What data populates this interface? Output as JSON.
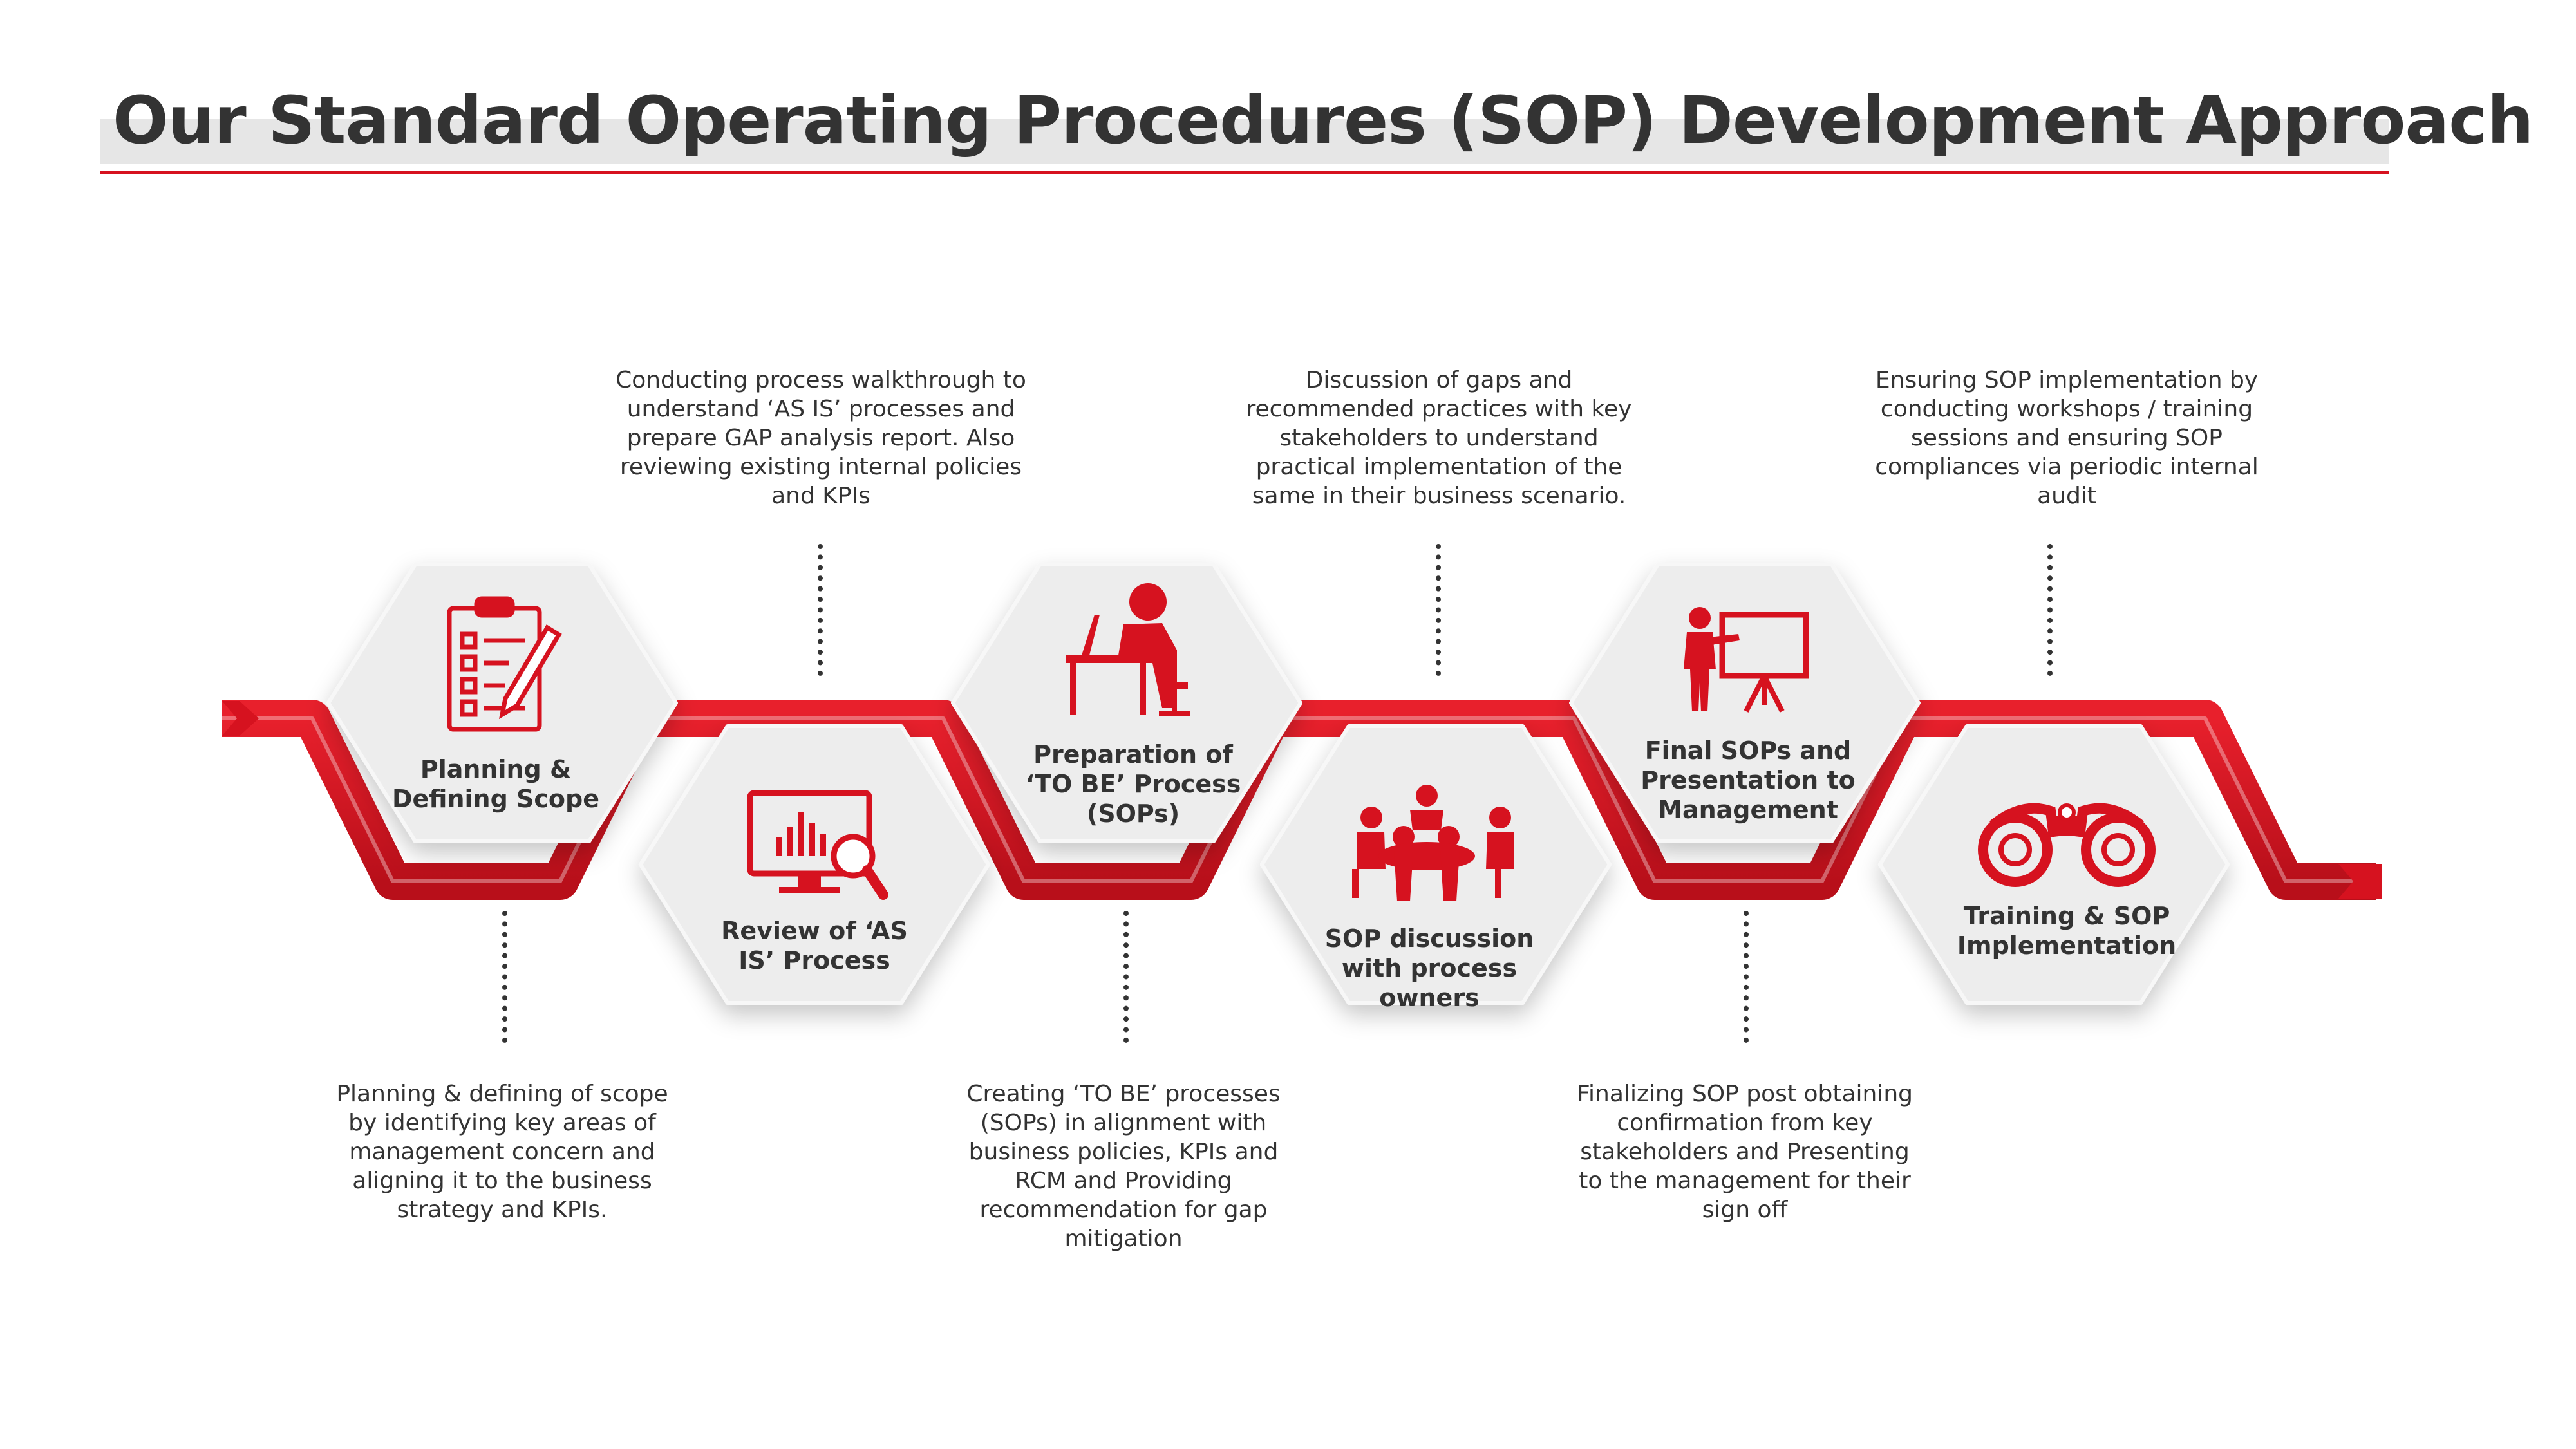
{
  "title": "Our Standard Operating Procedures (SOP) Development Approach",
  "colors": {
    "accent": "#d6121f",
    "accent_dark": "#9e0d17",
    "hexagon": "#ededed",
    "text": "#333333",
    "title_band": "#e6e6e6"
  },
  "steps": [
    {
      "label": "Planning & Defining Scope",
      "icon": "clipboard-checklist-icon",
      "description": "Planning & defining of scope by identifying key areas of management concern and aligning it to the business strategy and KPIs."
    },
    {
      "label": "Review of ‘AS IS’ Process",
      "icon": "monitor-chart-magnifier-icon",
      "description": "Conducting process walkthrough to understand ‘AS IS’ processes and prepare GAP analysis report. Also reviewing existing internal policies and KPIs"
    },
    {
      "label": "Preparation of ‘TO BE’ Process (SOPs)",
      "icon": "person-at-desk-laptop-icon",
      "description": "Creating ‘TO BE’ processes (SOPs) in alignment with business policies, KPIs and RCM and Providing recommendation for gap mitigation"
    },
    {
      "label": "SOP discussion with process owners",
      "icon": "meeting-table-group-icon",
      "description": "Discussion of gaps and recommended practices with key stakeholders to understand practical implementation of the same in their business scenario."
    },
    {
      "label": "Final SOPs and Presentation to Management",
      "icon": "presenter-board-icon",
      "description": "Finalizing SOP post obtaining confirmation from key stakeholders and Presenting to the management for their sign off"
    },
    {
      "label": "Training & SOP Implementation",
      "icon": "binoculars-icon",
      "description": "Ensuring SOP implementation by conducting workshops / training sessions and ensuring SOP compliances via periodic internal audit"
    }
  ]
}
